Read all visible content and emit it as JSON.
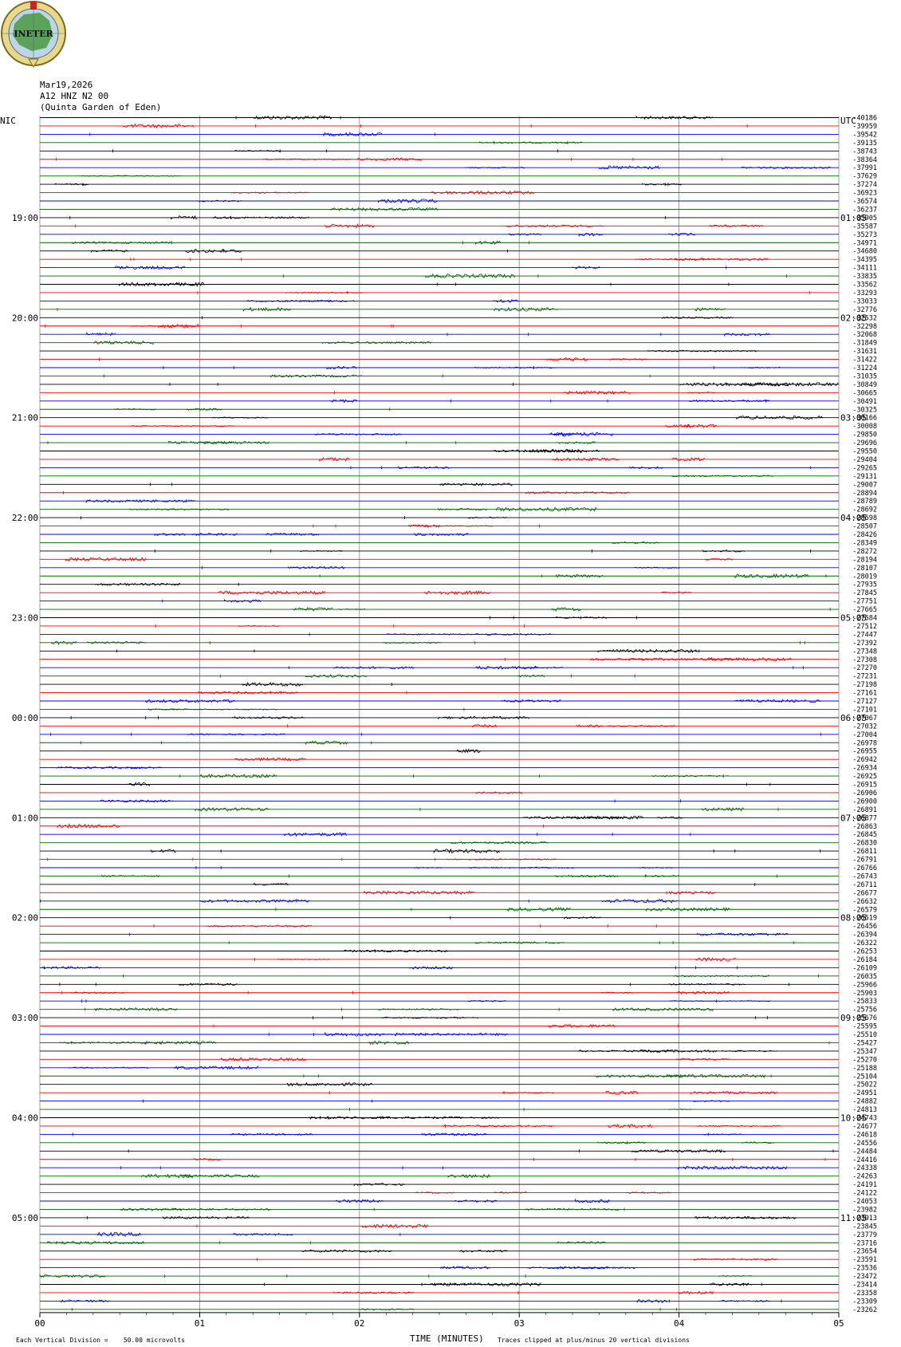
{
  "header": {
    "logo_text": "INETER",
    "date": "Mar19,2026",
    "station": "A12 HNZ N2 00",
    "location": "(Quinta Garden of Eden)"
  },
  "labels": {
    "left_zone": "NIC",
    "right_zone": "UTC"
  },
  "footer": {
    "scale": "Each Vertical Division =    50.00 microvolts",
    "x_title": "TIME (MINUTES)",
    "clip_note": "Traces clipped at plus/minus 20 vertical divisions"
  },
  "colors": {
    "black": "#000000",
    "red": "#ff0000",
    "blue": "#0000ff",
    "green": "#006400",
    "grid": "#888888"
  },
  "chart_data": {
    "type": "line",
    "title": "",
    "xlabel": "TIME (MINUTES)",
    "ylabel": "",
    "xlim": [
      0,
      5
    ],
    "x_ticks": [
      "00",
      "01",
      "02",
      "03",
      "04",
      "05"
    ],
    "trace_count": 144,
    "traces_per_hour": 12,
    "color_cycle": [
      "black",
      "red",
      "blue",
      "green"
    ],
    "left_hour_labels": [
      "19:00",
      "20:00",
      "21:00",
      "22:00",
      "23:00",
      "00:00",
      "01:00",
      "02:00",
      "03:00",
      "04:00",
      "05:00"
    ],
    "right_hour_labels": [
      "01:05",
      "02:05",
      "03:05",
      "04:05",
      "05:05",
      "06:05",
      "07:05",
      "08:05",
      "09:05",
      "10:05",
      "11:05"
    ],
    "right_values": [
      "-40186",
      "-39959",
      "-39542",
      "-39135",
      "-38743",
      "-38364",
      "-37991",
      "-37629",
      "-37274",
      "-36923",
      "-36574",
      "-36237",
      "-35905",
      "-35587",
      "-35273",
      "-34971",
      "-34680",
      "-34395",
      "-34111",
      "-33835",
      "-33562",
      "-33293",
      "-33033",
      "-32776",
      "-32532",
      "-32298",
      "-32068",
      "-31849",
      "-31631",
      "-31422",
      "-31224",
      "-31035",
      "-30849",
      "-30665",
      "-30491",
      "-30325",
      "-30166",
      "-30008",
      "-29850",
      "-29696",
      "-29550",
      "-29404",
      "-29265",
      "-29131",
      "-29007",
      "-28894",
      "-28789",
      "-28692",
      "-28598",
      "-28507",
      "-28426",
      "-28349",
      "-28272",
      "-28194",
      "-28107",
      "-28019",
      "-27935",
      "-27845",
      "-27751",
      "-27665",
      "-27584",
      "-27512",
      "-27447",
      "-27392",
      "-27348",
      "-27308",
      "-27270",
      "-27231",
      "-27198",
      "-27161",
      "-27127",
      "-27101",
      "-27067",
      "-27032",
      "-27004",
      "-26978",
      "-26955",
      "-26942",
      "-26934",
      "-26925",
      "-26915",
      "-26906",
      "-26900",
      "-26891",
      "-26877",
      "-26863",
      "-26845",
      "-26830",
      "-26811",
      "-26791",
      "-26766",
      "-26743",
      "-26711",
      "-26677",
      "-26632",
      "-26579",
      "-26519",
      "-26456",
      "-26394",
      "-26322",
      "-26253",
      "-26184",
      "-26109",
      "-26035",
      "-25966",
      "-25903",
      "-25833",
      "-25756",
      "-25676",
      "-25595",
      "-25510",
      "-25427",
      "-25347",
      "-25270",
      "-25188",
      "-25104",
      "-25022",
      "-24951",
      "-24882",
      "-24813",
      "-24743",
      "-24677",
      "-24618",
      "-24556",
      "-24484",
      "-24416",
      "-24338",
      "-24263",
      "-24191",
      "-24122",
      "-24053",
      "-23982",
      "-23913",
      "-23845",
      "-23779",
      "-23716",
      "-23654",
      "-23591",
      "-23536",
      "-23472",
      "-23414",
      "-23358",
      "-23309",
      "-23262"
    ]
  }
}
